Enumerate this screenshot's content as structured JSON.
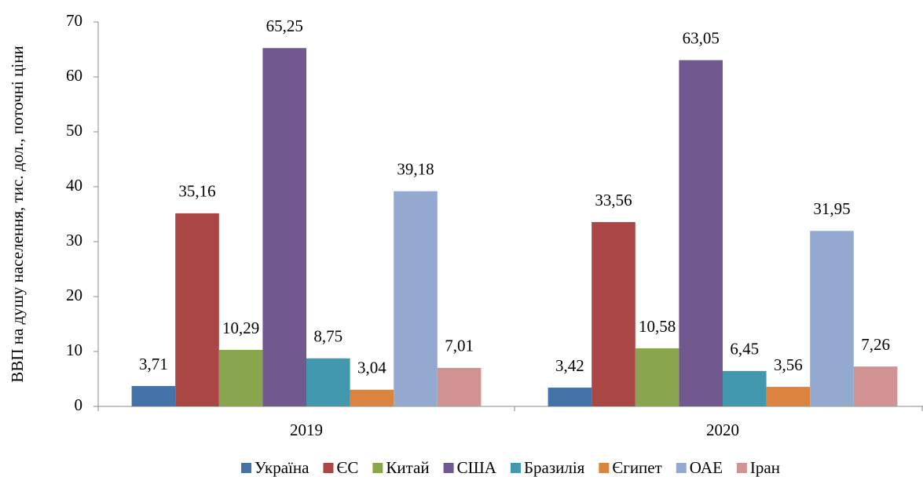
{
  "chart_data": {
    "type": "bar",
    "y_label": "ВВП на душу населення, тис. дол., поточні ціни",
    "categories": [
      "2019",
      "2020"
    ],
    "series": [
      {
        "name": "Україна",
        "color": "#4572a7",
        "values": [
          3.71,
          3.42
        ],
        "value_labels": [
          "3,71",
          "3,42"
        ]
      },
      {
        "name": "ЄС",
        "color": "#aa4643",
        "values": [
          35.16,
          33.56
        ],
        "value_labels": [
          "35,16",
          "33,56"
        ]
      },
      {
        "name": "Китай",
        "color": "#89a54e",
        "values": [
          10.29,
          10.58
        ],
        "value_labels": [
          "10,29",
          "10,58"
        ]
      },
      {
        "name": "США",
        "color": "#71588f",
        "values": [
          65.25,
          63.05
        ],
        "value_labels": [
          "65,25",
          "63,05"
        ]
      },
      {
        "name": "Бразилія",
        "color": "#4198af",
        "values": [
          8.75,
          6.45
        ],
        "value_labels": [
          "8,75",
          "6,45"
        ]
      },
      {
        "name": "Єгипет",
        "color": "#db843d",
        "values": [
          3.04,
          3.56
        ],
        "value_labels": [
          "3,04",
          "3,56"
        ]
      },
      {
        "name": "ОАЕ",
        "color": "#93a9cf",
        "values": [
          39.18,
          31.95
        ],
        "value_labels": [
          "39,18",
          "31,95"
        ]
      },
      {
        "name": "Іран",
        "color": "#d19392",
        "values": [
          7.01,
          7.26
        ],
        "value_labels": [
          "7,01",
          "7,26"
        ]
      }
    ],
    "ylim": [
      0,
      70
    ],
    "yticks": [
      0,
      10,
      20,
      30,
      40,
      50,
      60,
      70
    ],
    "legend": "bottom"
  }
}
